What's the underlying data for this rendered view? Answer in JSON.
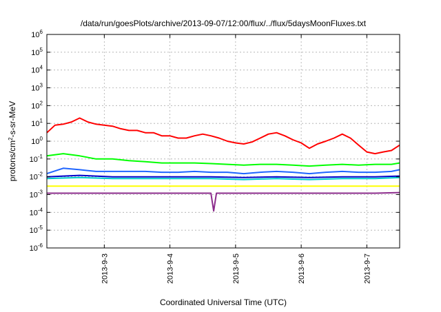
{
  "chart_data": {
    "type": "line",
    "title": "/data/run/goesPlots/archive/2013-09-07/12:00/flux/../flux/5daysMoonFluxes.txt",
    "xlabel": "Coordinated Universal Time (UTC)",
    "ylabel": {
      "base": "protons/cm",
      "sup": "2",
      "tail": "-s-sr-MeV"
    },
    "yscale": "log",
    "ylim": [
      1e-06,
      1000000.0
    ],
    "y_ticks": [
      {
        "exp": -6
      },
      {
        "exp": -5
      },
      {
        "exp": -4
      },
      {
        "exp": -3
      },
      {
        "exp": -2
      },
      {
        "exp": -1
      },
      {
        "exp": 0
      },
      {
        "exp": 1
      },
      {
        "exp": 2
      },
      {
        "exp": 3
      },
      {
        "exp": 4
      },
      {
        "exp": 5
      },
      {
        "exp": 6
      }
    ],
    "y_tick_base": "10",
    "xlim": [
      "2013-09-02T03:00",
      "2013-09-07T12:00"
    ],
    "x_ticks": [
      {
        "label": "2013-9-3",
        "at": "2013-09-03T00:00"
      },
      {
        "label": "2013-9-4",
        "at": "2013-09-04T00:00"
      },
      {
        "label": "2013-9-5",
        "at": "2013-09-05T00:00"
      },
      {
        "label": "2013-9-6",
        "at": "2013-09-06T00:00"
      },
      {
        "label": "2013-9-7",
        "at": "2013-09-07T00:00"
      }
    ],
    "grid": true,
    "legend": "none",
    "series": [
      {
        "color": "#ff0000",
        "width": 2,
        "x": [
          "2013-09-02T03:00",
          "2013-09-02T06:00",
          "2013-09-02T09:00",
          "2013-09-02T12:00",
          "2013-09-02T15:00",
          "2013-09-02T18:00",
          "2013-09-02T21:00",
          "2013-09-03T00:00",
          "2013-09-03T03:00",
          "2013-09-03T06:00",
          "2013-09-03T09:00",
          "2013-09-03T12:00",
          "2013-09-03T15:00",
          "2013-09-03T18:00",
          "2013-09-03T21:00",
          "2013-09-04T00:00",
          "2013-09-04T03:00",
          "2013-09-04T06:00",
          "2013-09-04T09:00",
          "2013-09-04T12:00",
          "2013-09-04T15:00",
          "2013-09-04T18:00",
          "2013-09-04T21:00",
          "2013-09-05T00:00",
          "2013-09-05T03:00",
          "2013-09-05T06:00",
          "2013-09-05T09:00",
          "2013-09-05T12:00",
          "2013-09-05T15:00",
          "2013-09-05T18:00",
          "2013-09-05T21:00",
          "2013-09-06T00:00",
          "2013-09-06T03:00",
          "2013-09-06T06:00",
          "2013-09-06T09:00",
          "2013-09-06T12:00",
          "2013-09-06T15:00",
          "2013-09-06T18:00",
          "2013-09-06T21:00",
          "2013-09-07T00:00",
          "2013-09-07T03:00",
          "2013-09-07T06:00",
          "2013-09-07T09:00",
          "2013-09-07T12:00"
        ],
        "y": [
          3,
          8,
          9,
          12,
          20,
          12,
          9,
          8,
          7,
          5,
          4,
          4,
          3,
          3,
          2,
          2,
          1.5,
          1.5,
          2,
          2.5,
          2,
          1.5,
          1,
          0.8,
          0.7,
          0.9,
          1.5,
          2.5,
          3,
          2,
          1.2,
          0.8,
          0.4,
          0.7,
          1,
          1.5,
          2.5,
          1.5,
          0.6,
          0.25,
          0.2,
          0.25,
          0.3,
          0.6
        ]
      },
      {
        "color": "#00ff00",
        "width": 2,
        "x": [
          "2013-09-02T03:00",
          "2013-09-02T09:00",
          "2013-09-02T15:00",
          "2013-09-02T21:00",
          "2013-09-03T03:00",
          "2013-09-03T09:00",
          "2013-09-03T15:00",
          "2013-09-03T21:00",
          "2013-09-04T03:00",
          "2013-09-04T09:00",
          "2013-09-04T15:00",
          "2013-09-04T21:00",
          "2013-09-05T03:00",
          "2013-09-05T09:00",
          "2013-09-05T15:00",
          "2013-09-05T21:00",
          "2013-09-06T03:00",
          "2013-09-06T09:00",
          "2013-09-06T15:00",
          "2013-09-06T21:00",
          "2013-09-07T03:00",
          "2013-09-07T09:00",
          "2013-09-07T12:00"
        ],
        "y": [
          0.15,
          0.2,
          0.15,
          0.1,
          0.1,
          0.08,
          0.07,
          0.06,
          0.06,
          0.06,
          0.055,
          0.05,
          0.045,
          0.05,
          0.05,
          0.045,
          0.04,
          0.045,
          0.05,
          0.045,
          0.05,
          0.05,
          0.06
        ]
      },
      {
        "color": "#1e64ff",
        "width": 2,
        "x": [
          "2013-09-02T03:00",
          "2013-09-02T09:00",
          "2013-09-02T15:00",
          "2013-09-02T21:00",
          "2013-09-03T03:00",
          "2013-09-03T09:00",
          "2013-09-03T15:00",
          "2013-09-03T21:00",
          "2013-09-04T03:00",
          "2013-09-04T09:00",
          "2013-09-04T15:00",
          "2013-09-04T21:00",
          "2013-09-05T03:00",
          "2013-09-05T09:00",
          "2013-09-05T15:00",
          "2013-09-05T21:00",
          "2013-09-06T03:00",
          "2013-09-06T09:00",
          "2013-09-06T15:00",
          "2013-09-06T21:00",
          "2013-09-07T03:00",
          "2013-09-07T09:00",
          "2013-09-07T12:00"
        ],
        "y": [
          0.015,
          0.03,
          0.025,
          0.02,
          0.02,
          0.02,
          0.02,
          0.018,
          0.018,
          0.02,
          0.018,
          0.018,
          0.015,
          0.018,
          0.02,
          0.018,
          0.015,
          0.018,
          0.02,
          0.018,
          0.018,
          0.02,
          0.025
        ]
      },
      {
        "color": "#00cccc",
        "width": 2,
        "x": [
          "2013-09-02T03:00",
          "2013-09-02T15:00",
          "2013-09-03T03:00",
          "2013-09-03T15:00",
          "2013-09-04T03:00",
          "2013-09-04T15:00",
          "2013-09-05T03:00",
          "2013-09-05T15:00",
          "2013-09-06T03:00",
          "2013-09-06T15:00",
          "2013-09-07T03:00",
          "2013-09-07T12:00"
        ],
        "y": [
          0.008,
          0.009,
          0.008,
          0.008,
          0.008,
          0.008,
          0.007,
          0.008,
          0.007,
          0.008,
          0.008,
          0.009
        ]
      },
      {
        "color": "#0000cc",
        "width": 2,
        "x": [
          "2013-09-02T03:00",
          "2013-09-02T15:00",
          "2013-09-03T03:00",
          "2013-09-03T15:00",
          "2013-09-04T03:00",
          "2013-09-04T15:00",
          "2013-09-05T03:00",
          "2013-09-05T15:00",
          "2013-09-06T03:00",
          "2013-09-06T15:00",
          "2013-09-07T03:00",
          "2013-09-07T12:00"
        ],
        "y": [
          0.01,
          0.012,
          0.01,
          0.01,
          0.01,
          0.01,
          0.009,
          0.01,
          0.009,
          0.01,
          0.01,
          0.011
        ]
      },
      {
        "color": "#ffff00",
        "width": 2,
        "x": [
          "2013-09-02T03:00",
          "2013-09-03T03:00",
          "2013-09-04T03:00",
          "2013-09-05T03:00",
          "2013-09-06T03:00",
          "2013-09-07T03:00",
          "2013-09-07T12:00"
        ],
        "y": [
          0.003,
          0.003,
          0.003,
          0.003,
          0.003,
          0.003,
          0.003
        ]
      },
      {
        "color": "#8b2b8b",
        "width": 2,
        "x": [
          "2013-09-02T03:00",
          "2013-09-03T03:00",
          "2013-09-04T03:00",
          "2013-09-04T15:00",
          "2013-09-04T16:00",
          "2013-09-04T17:00",
          "2013-09-05T03:00",
          "2013-09-06T03:00",
          "2013-09-07T03:00",
          "2013-09-07T12:00"
        ],
        "y": [
          0.0012,
          0.0012,
          0.0012,
          0.0012,
          0.00012,
          0.0012,
          0.0012,
          0.0012,
          0.0012,
          0.0013
        ]
      }
    ]
  }
}
